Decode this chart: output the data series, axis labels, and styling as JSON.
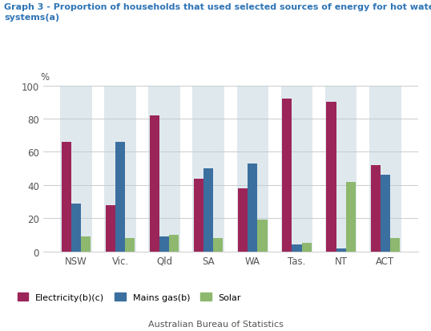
{
  "title_line1": "Graph 3 - Proportion of households that used selected sources of energy for hot water",
  "title_line2": "systems(a)",
  "categories": [
    "NSW",
    "Vic.",
    "Qld",
    "SA",
    "WA",
    "Tas.",
    "NT",
    "ACT"
  ],
  "series": {
    "Electricity(b)(c)": [
      66,
      28,
      82,
      44,
      38,
      92,
      90,
      52
    ],
    "Mains gas(b)": [
      29,
      66,
      9,
      50,
      53,
      4,
      2,
      46
    ],
    "Solar": [
      9,
      8,
      10,
      8,
      19,
      5,
      42,
      8
    ]
  },
  "colors": {
    "Electricity(b)(c)": "#9B2558",
    "Mains gas(b)": "#3B6FA0",
    "Solar": "#8DB86E"
  },
  "ylim": [
    0,
    100
  ],
  "yticks": [
    0,
    20,
    40,
    60,
    80,
    100
  ],
  "ylabel": "%",
  "bar_width": 0.22,
  "background_color": "#FFFFFF",
  "grid_color": "#CCCCCC",
  "title_color": "#2E74B5",
  "tick_color": "#555555",
  "footer": "Australian Bureau of Statistics",
  "ghost_bar_color": "#B8CCD8",
  "ghost_bar_height": 100
}
